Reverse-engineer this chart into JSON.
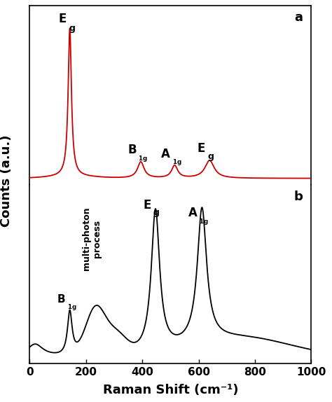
{
  "xlabel": "Raman Shift (cm⁻¹)",
  "ylabel": "Counts (a.u.)",
  "xlim": [
    0,
    1000
  ],
  "label_a": "a",
  "label_b": "b",
  "color_a": "#cc0000",
  "color_b": "#000000",
  "background": "#ffffff",
  "xticks": [
    0,
    200,
    400,
    600,
    800,
    1000
  ]
}
